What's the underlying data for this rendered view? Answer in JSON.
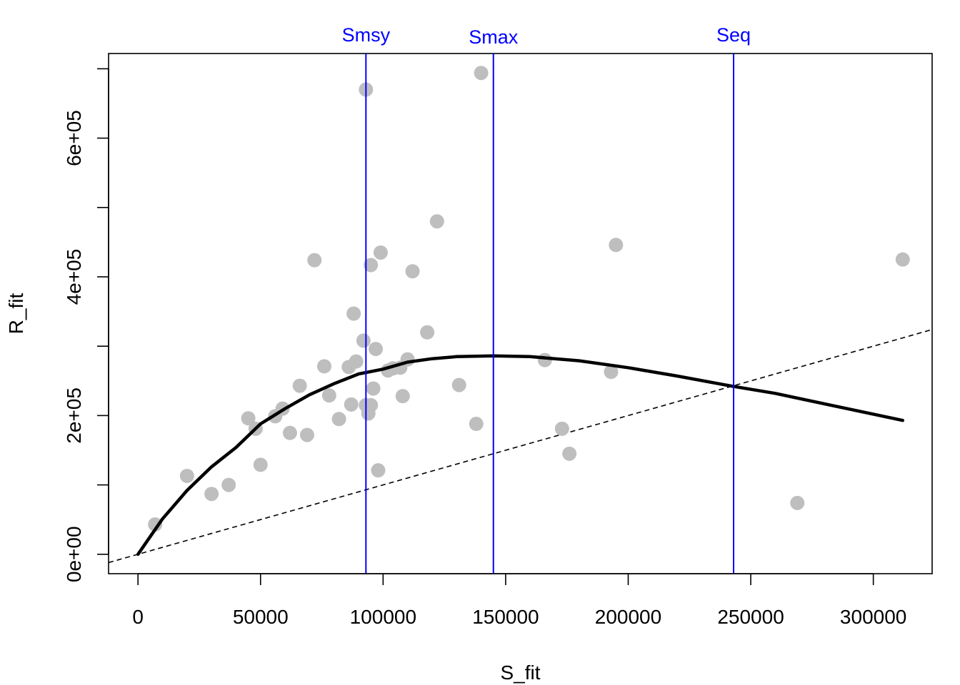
{
  "chart_data": {
    "type": "scatter",
    "title": "",
    "xlabel": "S_fit",
    "ylabel": "R_fit",
    "xlim": [
      -12000,
      324000
    ],
    "ylim": [
      -28000,
      722000
    ],
    "x_ticks": [
      0,
      50000,
      100000,
      150000,
      200000,
      250000,
      300000
    ],
    "x_tick_labels": [
      "0",
      "50000",
      "100000",
      "150000",
      "200000",
      "250000",
      "300000"
    ],
    "y_ticks": [
      0,
      100000,
      200000,
      300000,
      400000,
      500000,
      600000,
      700000
    ],
    "y_tick_labels": [
      "0e+00",
      "",
      "2e+05",
      "",
      "4e+05",
      "",
      "6e+05",
      ""
    ],
    "grid": false,
    "colors": {
      "points": "#bebebe",
      "curve": "#000000",
      "replacement_line": "#000000",
      "reference_lines": "#0000ff"
    },
    "points": [
      [
        7000,
        43000
      ],
      [
        20000,
        113000
      ],
      [
        30000,
        87000
      ],
      [
        37000,
        100000
      ],
      [
        45000,
        196000
      ],
      [
        48000,
        181000
      ],
      [
        50000,
        129000
      ],
      [
        56000,
        199000
      ],
      [
        59000,
        210000
      ],
      [
        62000,
        175000
      ],
      [
        66000,
        243000
      ],
      [
        69000,
        172000
      ],
      [
        72000,
        424000
      ],
      [
        76000,
        271000
      ],
      [
        78000,
        229000
      ],
      [
        82000,
        195000
      ],
      [
        86000,
        270000
      ],
      [
        87000,
        216000
      ],
      [
        88000,
        347000
      ],
      [
        89000,
        278000
      ],
      [
        92000,
        308000
      ],
      [
        93000,
        215000
      ],
      [
        93000,
        670000
      ],
      [
        94000,
        203000
      ],
      [
        95000,
        417000
      ],
      [
        95000,
        215000
      ],
      [
        96000,
        239000
      ],
      [
        97000,
        296000
      ],
      [
        98000,
        121000
      ],
      [
        99000,
        435000
      ],
      [
        102000,
        265000
      ],
      [
        104000,
        268000
      ],
      [
        107000,
        269000
      ],
      [
        108000,
        228000
      ],
      [
        110000,
        281000
      ],
      [
        112000,
        408000
      ],
      [
        118000,
        320000
      ],
      [
        122000,
        480000
      ],
      [
        131000,
        244000
      ],
      [
        138000,
        188000
      ],
      [
        140000,
        694000
      ],
      [
        166000,
        280000
      ],
      [
        173000,
        181000
      ],
      [
        176000,
        145000
      ],
      [
        193000,
        263000
      ],
      [
        195000,
        446000
      ],
      [
        269000,
        74000
      ],
      [
        312000,
        425000
      ]
    ],
    "curve": [
      [
        0,
        0
      ],
      [
        10000,
        51000
      ],
      [
        20000,
        92000
      ],
      [
        30000,
        126000
      ],
      [
        40000,
        154000
      ],
      [
        50000,
        188000
      ],
      [
        60000,
        210000
      ],
      [
        70000,
        230000
      ],
      [
        80000,
        246000
      ],
      [
        90000,
        260000
      ],
      [
        100000,
        267000
      ],
      [
        110000,
        277000
      ],
      [
        120000,
        282000
      ],
      [
        130000,
        285000
      ],
      [
        145000,
        286000
      ],
      [
        160000,
        285000
      ],
      [
        180000,
        279000
      ],
      [
        200000,
        269000
      ],
      [
        220000,
        257000
      ],
      [
        243000,
        242000
      ],
      [
        260000,
        232000
      ],
      [
        280000,
        217000
      ],
      [
        300000,
        202000
      ],
      [
        312000,
        193000
      ]
    ],
    "replacement_line": [
      [
        -12000,
        -12000
      ],
      [
        324000,
        324000
      ]
    ],
    "reference_lines": [
      {
        "label": "Smsy",
        "x": 93000
      },
      {
        "label": "Smax",
        "x": 145000
      },
      {
        "label": "Seq",
        "x": 243000
      }
    ]
  }
}
